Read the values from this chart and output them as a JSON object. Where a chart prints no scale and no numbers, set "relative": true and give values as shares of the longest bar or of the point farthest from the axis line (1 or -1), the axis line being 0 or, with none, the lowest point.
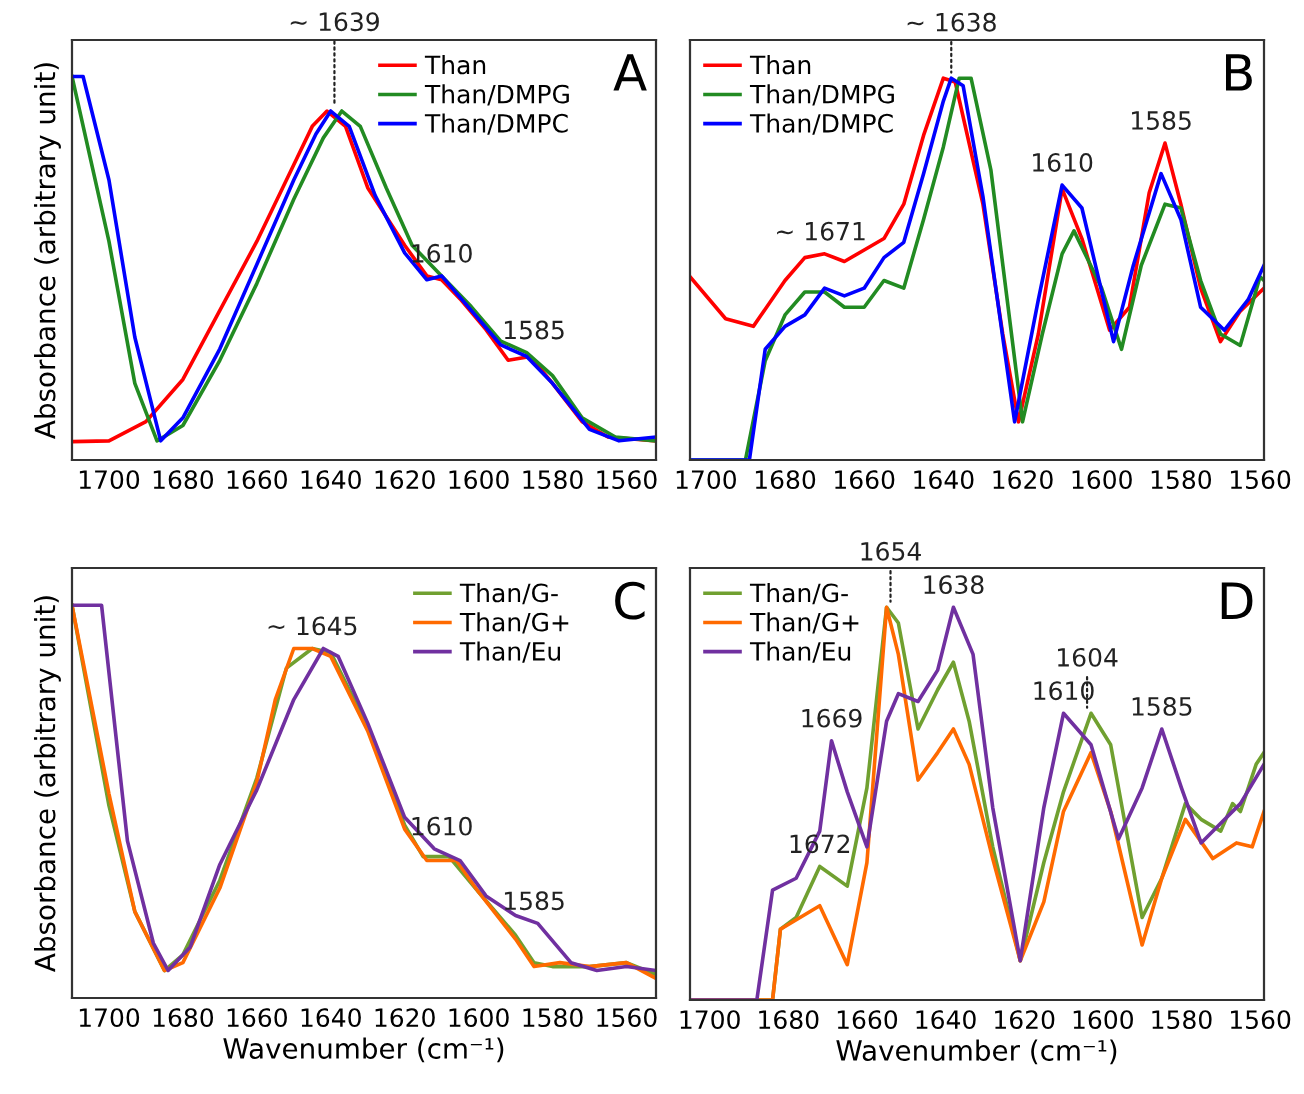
{
  "chart_data": [
    {
      "type": "line",
      "title": "A",
      "ylabel": "Absorbance (arbitrary unit)",
      "relative": true,
      "tick_labels": "x",
      "legend": "top right",
      "grid": false,
      "xlim": [
        1710,
        1552
      ],
      "xticks": [
        1700,
        1680,
        1660,
        1640,
        1620,
        1600,
        1580,
        1560
      ],
      "series": [
        {
          "name": "Than",
          "color": "#ff0000",
          "x": [
            1710,
            1700,
            1690,
            1680,
            1670,
            1660,
            1650,
            1645,
            1641,
            1636,
            1630,
            1620,
            1614,
            1610,
            1605,
            1598,
            1592,
            1586,
            1580,
            1572,
            1565,
            1552
          ],
          "values": [
            0.048,
            0.05,
            0.1,
            0.21,
            0.39,
            0.57,
            0.77,
            0.87,
            0.91,
            0.87,
            0.71,
            0.56,
            0.48,
            0.47,
            0.42,
            0.34,
            0.26,
            0.27,
            0.2,
            0.1,
            0.06,
            0.05
          ]
        },
        {
          "name": "Than/DMPG",
          "color": "#228b22",
          "x": [
            1710,
            1700,
            1693,
            1687,
            1680,
            1670,
            1660,
            1650,
            1642,
            1637,
            1632,
            1625,
            1618,
            1610,
            1602,
            1594,
            1587,
            1580,
            1572,
            1563,
            1552
          ],
          "values": [
            1.0,
            0.57,
            0.2,
            0.05,
            0.09,
            0.26,
            0.46,
            0.68,
            0.84,
            0.91,
            0.87,
            0.71,
            0.56,
            0.48,
            0.4,
            0.31,
            0.28,
            0.22,
            0.11,
            0.06,
            0.05
          ]
        },
        {
          "name": "Than/DMPC",
          "color": "#0000ff",
          "x": [
            1710,
            1707,
            1700,
            1693,
            1686,
            1680,
            1670,
            1660,
            1650,
            1644,
            1640,
            1635,
            1628,
            1620,
            1614,
            1610,
            1602,
            1594,
            1587,
            1580,
            1570,
            1562,
            1552
          ],
          "values": [
            1.0,
            1.0,
            0.73,
            0.32,
            0.05,
            0.11,
            0.29,
            0.51,
            0.73,
            0.85,
            0.91,
            0.87,
            0.69,
            0.54,
            0.47,
            0.48,
            0.39,
            0.3,
            0.27,
            0.2,
            0.08,
            0.05,
            0.06
          ]
        }
      ],
      "annotations": [
        {
          "text": "~ 1639",
          "x": 1639,
          "y": 0.91
        },
        {
          "text": "1610",
          "x": 1610,
          "y": 0.48
        },
        {
          "text": "1585",
          "x": 1585,
          "y": 0.28
        }
      ]
    },
    {
      "type": "line",
      "title": "B",
      "relative": true,
      "tick_labels": "x",
      "legend": "top left",
      "grid": false,
      "xlim": [
        1704,
        1559
      ],
      "xticks": [
        1700,
        1680,
        1660,
        1640,
        1620,
        1600,
        1580,
        1560
      ],
      "series": [
        {
          "name": "Than",
          "color": "#ff0000",
          "x": [
            1704,
            1695,
            1688,
            1680,
            1675,
            1670,
            1665,
            1660,
            1655,
            1650,
            1645,
            1640,
            1637,
            1630,
            1625,
            1621,
            1616,
            1610,
            1605,
            1598,
            1593,
            1588,
            1584,
            1580,
            1575,
            1570,
            1565,
            1560,
            1559
          ],
          "values": [
            0.48,
            0.37,
            0.35,
            0.47,
            0.53,
            0.54,
            0.52,
            0.55,
            0.58,
            0.67,
            0.85,
            1.0,
            0.99,
            0.67,
            0.33,
            0.1,
            0.33,
            0.71,
            0.58,
            0.34,
            0.4,
            0.7,
            0.83,
            0.67,
            0.45,
            0.31,
            0.39,
            0.44,
            0.45
          ]
        },
        {
          "name": "Than/DMPG",
          "color": "#228b22",
          "x": [
            1704,
            1690,
            1685,
            1680,
            1675,
            1670,
            1665,
            1660,
            1655,
            1650,
            1645,
            1640,
            1636,
            1633,
            1628,
            1620,
            1615,
            1610,
            1607,
            1600,
            1595,
            1590,
            1584,
            1580,
            1575,
            1570,
            1565,
            1560,
            1559
          ],
          "values": [
            0,
            0,
            0.26,
            0.38,
            0.44,
            0.44,
            0.4,
            0.4,
            0.47,
            0.45,
            0.63,
            0.82,
            1.0,
            1.0,
            0.76,
            0.1,
            0.33,
            0.54,
            0.6,
            0.45,
            0.29,
            0.51,
            0.67,
            0.66,
            0.47,
            0.33,
            0.3,
            0.48,
            0.47
          ]
        },
        {
          "name": "Than/DMPC",
          "color": "#0000ff",
          "x": [
            1704,
            1689,
            1685,
            1680,
            1675,
            1670,
            1665,
            1660,
            1655,
            1650,
            1645,
            1640,
            1638,
            1635,
            1630,
            1622,
            1616,
            1610,
            1605,
            1597,
            1592,
            1585,
            1580,
            1575,
            1569,
            1563,
            1559
          ],
          "values": [
            0,
            0,
            0.29,
            0.35,
            0.38,
            0.45,
            0.43,
            0.45,
            0.53,
            0.57,
            0.75,
            0.94,
            1.0,
            0.98,
            0.69,
            0.1,
            0.42,
            0.72,
            0.66,
            0.31,
            0.51,
            0.75,
            0.63,
            0.4,
            0.34,
            0.42,
            0.51
          ]
        }
      ],
      "annotations": [
        {
          "text": "~ 1671",
          "x": 1671,
          "y": 0.54
        },
        {
          "text": "~ 1638",
          "x": 1638,
          "y": 1.0
        },
        {
          "text": "1610",
          "x": 1610,
          "y": 0.72
        },
        {
          "text": "1585",
          "x": 1585,
          "y": 0.83
        }
      ]
    },
    {
      "type": "line",
      "title": "C",
      "xlabel": "Wavenumber (cm⁻¹)",
      "ylabel": "Absorbance (arbitrary unit)",
      "relative": true,
      "tick_labels": "x",
      "legend": "top right",
      "grid": false,
      "xlim": [
        1710,
        1552
      ],
      "xticks": [
        1700,
        1680,
        1660,
        1640,
        1620,
        1600,
        1580,
        1560
      ],
      "series": [
        {
          "name": "Than/G-",
          "color": "#70a030",
          "x": [
            1710,
            1700,
            1693,
            1685,
            1680,
            1670,
            1660,
            1652,
            1645,
            1640,
            1630,
            1620,
            1615,
            1608,
            1600,
            1590,
            1585,
            1580,
            1570,
            1560,
            1552
          ],
          "values": [
            1.0,
            0.49,
            0.22,
            0.07,
            0.11,
            0.3,
            0.56,
            0.84,
            0.89,
            0.88,
            0.69,
            0.44,
            0.36,
            0.36,
            0.27,
            0.16,
            0.09,
            0.08,
            0.08,
            0.09,
            0.06
          ]
        },
        {
          "name": "Than/G+",
          "color": "#ff6a00",
          "x": [
            1710,
            1700,
            1693,
            1685,
            1680,
            1670,
            1660,
            1655,
            1650,
            1645,
            1640,
            1630,
            1620,
            1614,
            1606,
            1600,
            1590,
            1585,
            1578,
            1570,
            1560,
            1552
          ],
          "values": [
            1.0,
            0.52,
            0.22,
            0.07,
            0.09,
            0.28,
            0.55,
            0.76,
            0.89,
            0.89,
            0.87,
            0.68,
            0.43,
            0.35,
            0.35,
            0.27,
            0.15,
            0.08,
            0.09,
            0.08,
            0.09,
            0.05
          ]
        },
        {
          "name": "Than/Eu",
          "color": "#7030a0",
          "x": [
            1710,
            1702,
            1695,
            1688,
            1684,
            1678,
            1670,
            1660,
            1650,
            1642,
            1638,
            1630,
            1620,
            1612,
            1605,
            1598,
            1590,
            1584,
            1575,
            1568,
            1560,
            1552
          ],
          "values": [
            1.0,
            1.0,
            0.4,
            0.14,
            0.07,
            0.13,
            0.34,
            0.53,
            0.76,
            0.89,
            0.87,
            0.7,
            0.46,
            0.38,
            0.35,
            0.26,
            0.21,
            0.19,
            0.09,
            0.07,
            0.08,
            0.07
          ]
        }
      ],
      "annotations": [
        {
          "text": "~ 1645",
          "x": 1645,
          "y": 0.89
        },
        {
          "text": "1610",
          "x": 1610,
          "y": 0.38
        },
        {
          "text": "1585",
          "x": 1585,
          "y": 0.19
        }
      ]
    },
    {
      "type": "line",
      "title": "D",
      "xlabel": "Wavenumber (cm⁻¹)",
      "relative": true,
      "tick_labels": "x",
      "legend": "top left",
      "grid": false,
      "xlim": [
        1705,
        1559
      ],
      "xticks": [
        1700,
        1680,
        1660,
        1640,
        1620,
        1600,
        1580,
        1560
      ],
      "series": [
        {
          "name": "Than/G-",
          "color": "#70a030",
          "x": [
            1705,
            1684,
            1682,
            1678,
            1672,
            1665,
            1660,
            1655,
            1652,
            1647,
            1642,
            1638,
            1634,
            1628,
            1621,
            1615,
            1610,
            1603,
            1598,
            1590,
            1585,
            1579,
            1575,
            1570,
            1567,
            1565,
            1561,
            1559
          ],
          "values": [
            0,
            0,
            0.18,
            0.21,
            0.34,
            0.29,
            0.54,
            1.0,
            0.96,
            0.69,
            0.79,
            0.86,
            0.71,
            0.39,
            0.1,
            0.35,
            0.53,
            0.73,
            0.65,
            0.21,
            0.31,
            0.5,
            0.46,
            0.43,
            0.5,
            0.48,
            0.6,
            0.63
          ]
        },
        {
          "name": "Than/G+",
          "color": "#ff6a00",
          "x": [
            1705,
            1684,
            1682,
            1677,
            1672,
            1665,
            1660,
            1655,
            1652,
            1647,
            1642,
            1638,
            1634,
            1628,
            1621,
            1615,
            1610,
            1603,
            1598,
            1590,
            1585,
            1579,
            1572,
            1566,
            1562,
            1559
          ],
          "values": [
            0,
            0,
            0.18,
            0.21,
            0.24,
            0.09,
            0.35,
            1.0,
            0.88,
            0.56,
            0.63,
            0.69,
            0.6,
            0.36,
            0.1,
            0.25,
            0.48,
            0.63,
            0.48,
            0.14,
            0.31,
            0.46,
            0.36,
            0.4,
            0.39,
            0.48
          ]
        },
        {
          "name": "Than/Eu",
          "color": "#7030a0",
          "x": [
            1705,
            1688,
            1684,
            1678,
            1672,
            1669,
            1665,
            1660,
            1655,
            1652,
            1647,
            1642,
            1638,
            1633,
            1628,
            1621,
            1615,
            1610,
            1603,
            1596,
            1590,
            1585,
            1580,
            1575,
            1570,
            1565,
            1559
          ],
          "values": [
            0,
            0,
            0.28,
            0.31,
            0.43,
            0.66,
            0.53,
            0.39,
            0.71,
            0.78,
            0.76,
            0.84,
            1.0,
            0.88,
            0.49,
            0.1,
            0.49,
            0.73,
            0.65,
            0.41,
            0.54,
            0.69,
            0.54,
            0.4,
            0.45,
            0.5,
            0.6
          ]
        }
      ],
      "annotations": [
        {
          "text": "1672",
          "x": 1672,
          "y": 0.34
        },
        {
          "text": "1669",
          "x": 1669,
          "y": 0.66
        },
        {
          "text": "1654",
          "x": 1654,
          "y": 1.0
        },
        {
          "text": "1638",
          "x": 1638,
          "y": 1.0
        },
        {
          "text": "1610",
          "x": 1610,
          "y": 0.73
        },
        {
          "text": "1604",
          "x": 1604,
          "y": 0.73
        },
        {
          "text": "1585",
          "x": 1585,
          "y": 0.69
        }
      ]
    }
  ]
}
